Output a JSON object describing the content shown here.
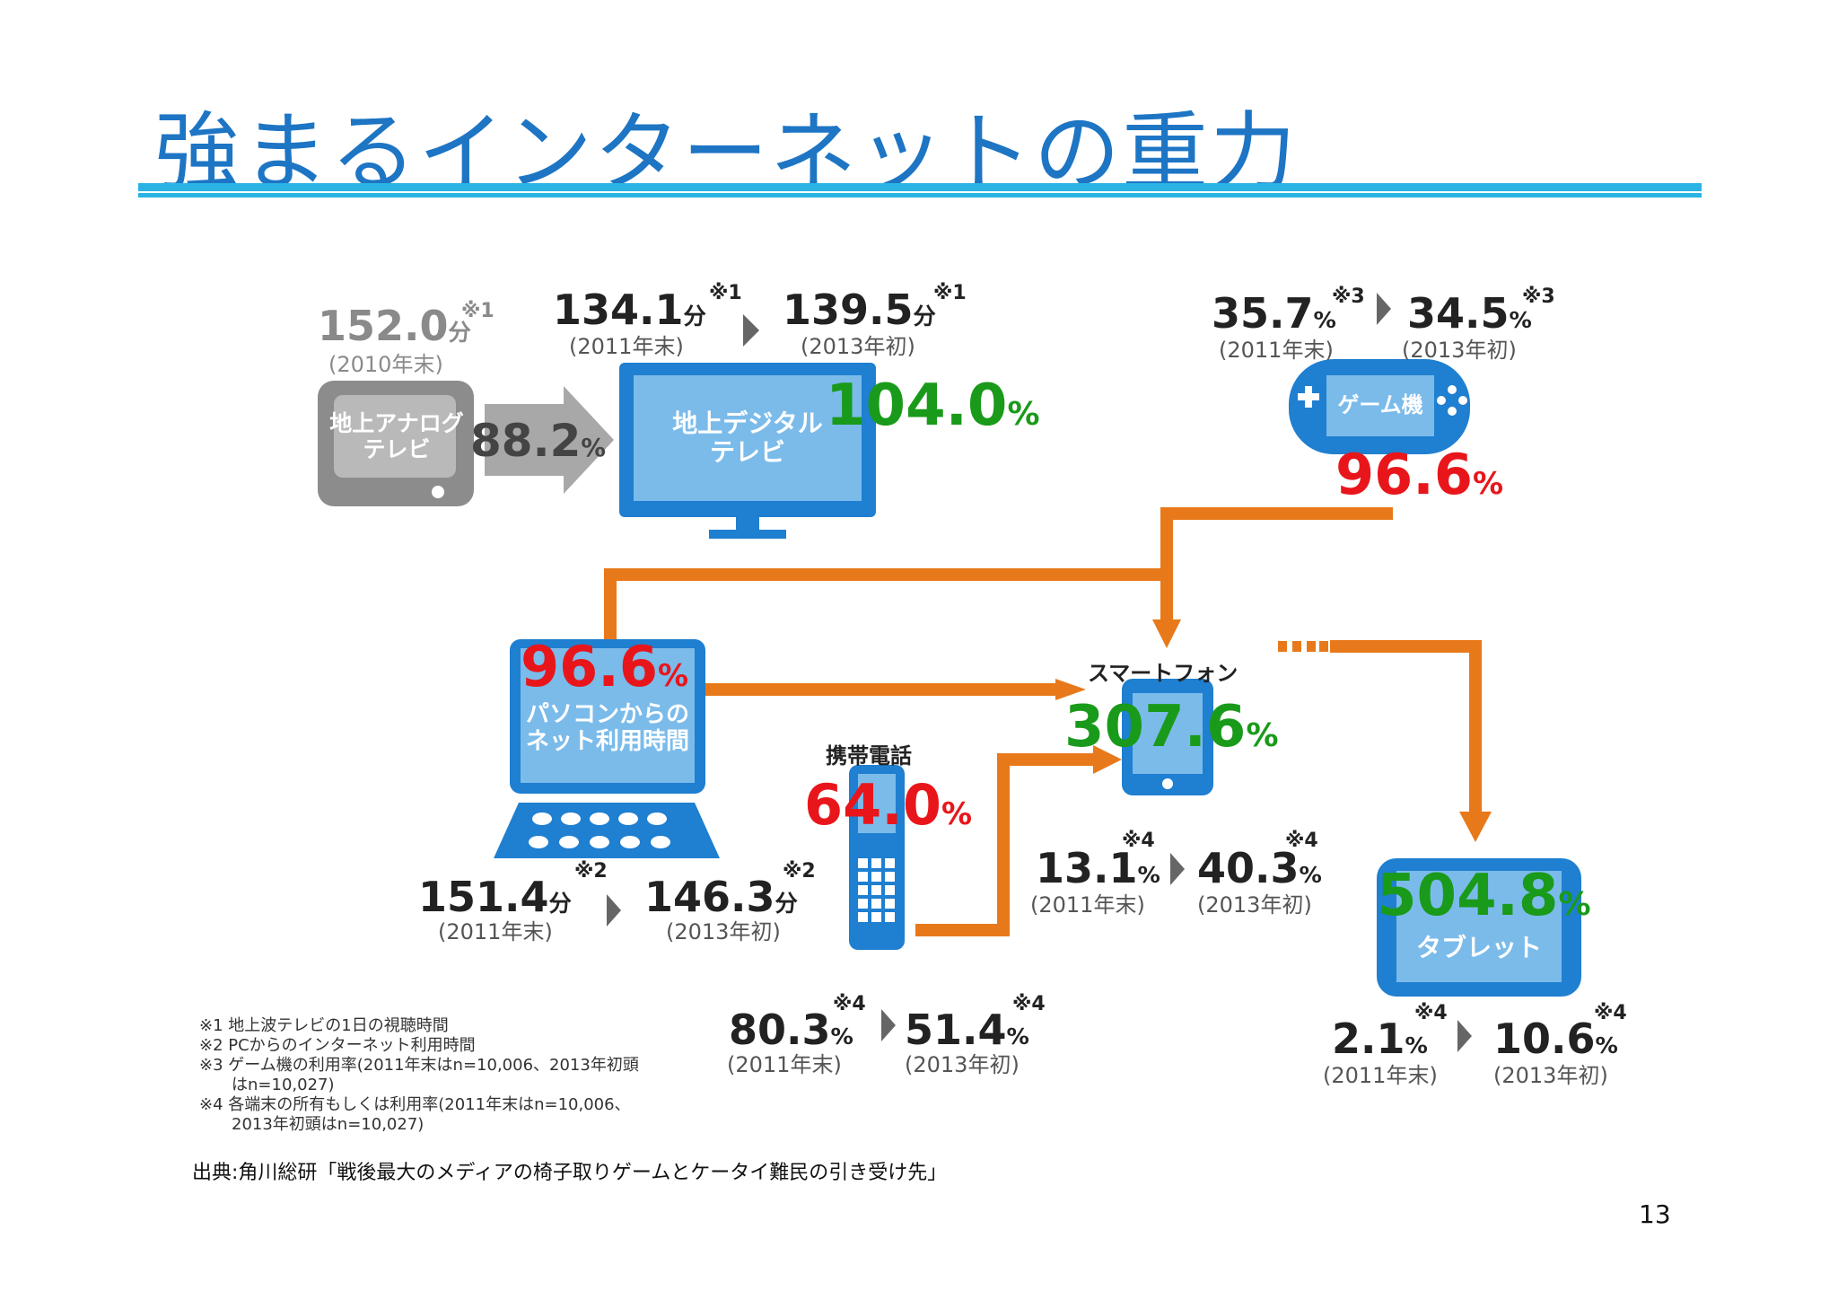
{
  "title": "強まるインターネットの重力",
  "page_number": "13",
  "source": "出典:角川総研「戦後最大のメディアの椅子取りゲームとケータイ難民の引き受け先」",
  "colors": {
    "accent_blue": "#1d75c4",
    "rule": "#2bb3e3",
    "arrow": "#e8791a",
    "green": "#1a9a1a",
    "red": "#e8161b",
    "device": "#1f7fd0"
  },
  "devices": {
    "analog_tv": "地上アナログ\nテレビ",
    "digital_tv": "地上デジタル\nテレビ",
    "game": "ゲーム機",
    "pc": "パソコンからの\nネット利用時間",
    "mobile": "携帯電話",
    "smartphone": "スマートフォン",
    "tablet": "タブレット"
  },
  "stats": {
    "analog_tv": {
      "value": "152.0",
      "unit": "分",
      "mark": "※1",
      "date": "(2010年末)"
    },
    "analog_to_digital": {
      "value": "88.2",
      "unit": "%"
    },
    "digital_tv_2011": {
      "value": "134.1",
      "unit": "分",
      "mark": "※1",
      "date": "(2011年末)"
    },
    "digital_tv_2013": {
      "value": "139.5",
      "unit": "分",
      "mark": "※1",
      "date": "(2013年初)"
    },
    "digital_tv_ratio": {
      "value": "104.0",
      "unit": "%"
    },
    "game_2011": {
      "value": "35.7",
      "unit": "%",
      "mark": "※3",
      "date": "(2011年末)"
    },
    "game_2013": {
      "value": "34.5",
      "unit": "%",
      "mark": "※3",
      "date": "(2013年初)"
    },
    "game_ratio": {
      "value": "96.6",
      "unit": "%"
    },
    "pc_ratio": {
      "value": "96.6",
      "unit": "%"
    },
    "pc_2011": {
      "value": "151.4",
      "unit": "分",
      "mark": "※2",
      "date": "(2011年末)"
    },
    "pc_2013": {
      "value": "146.3",
      "unit": "分",
      "mark": "※2",
      "date": "(2013年初)"
    },
    "mobile_ratio": {
      "value": "64.0",
      "unit": "%"
    },
    "mobile_2011": {
      "value": "80.3",
      "unit": "%",
      "mark": "※4",
      "date": "(2011年末)"
    },
    "mobile_2013": {
      "value": "51.4",
      "unit": "%",
      "mark": "※4",
      "date": "(2013年初)"
    },
    "smartphone_ratio": {
      "value": "307.6",
      "unit": "%"
    },
    "smartphone_2011": {
      "value": "13.1",
      "unit": "%",
      "mark": "※4",
      "date": "(2011年末)"
    },
    "smartphone_2013": {
      "value": "40.3",
      "unit": "%",
      "mark": "※4",
      "date": "(2013年初)"
    },
    "tablet_ratio": {
      "value": "504.8",
      "unit": "%"
    },
    "tablet_2011": {
      "value": "2.1",
      "unit": "%",
      "mark": "※4",
      "date": "(2011年末)"
    },
    "tablet_2013": {
      "value": "10.6",
      "unit": "%",
      "mark": "※4",
      "date": "(2013年初)"
    }
  },
  "notes": [
    "※1 地上波テレビの1日の視聴時間",
    "※2 PCからのインターネット利用時間",
    "※3 ゲーム機の利用率(2011年末はn=10,006、2013年初頭",
    "はn=10,027)",
    "※4 各端末の所有もしくは利用率(2011年末はn=10,006、",
    "2013年初頭はn=10,027)"
  ]
}
